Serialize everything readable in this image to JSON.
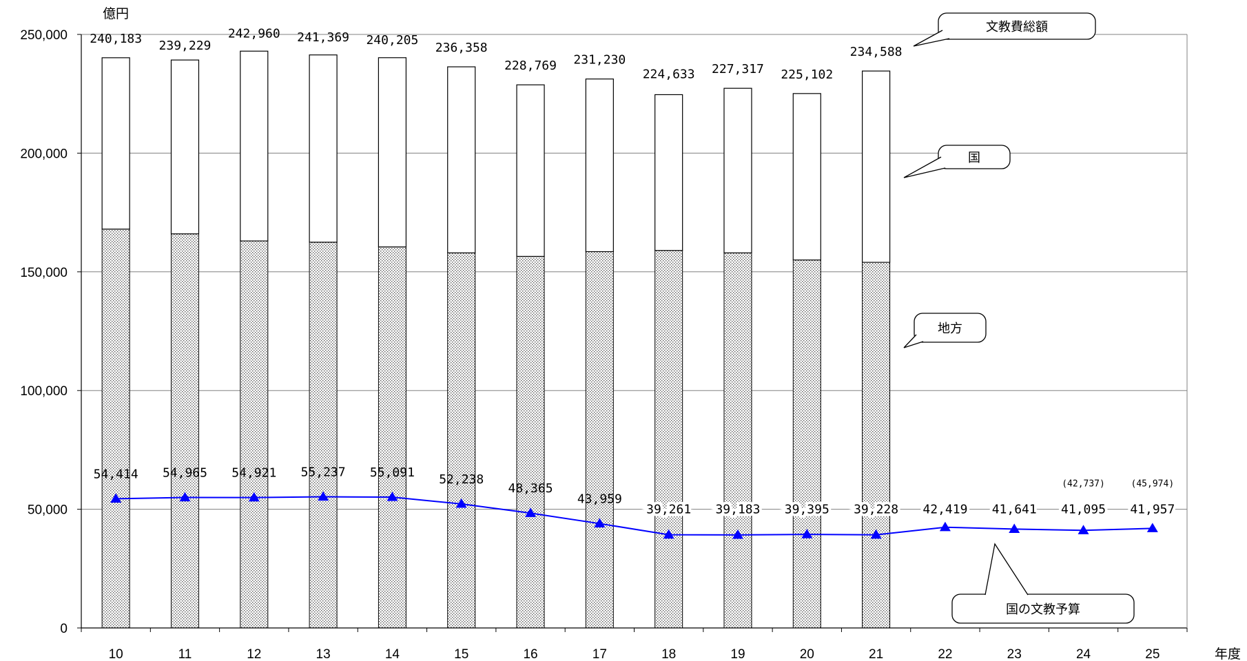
{
  "chart_data": {
    "type": "bar",
    "y_unit": "億円",
    "x_unit": "年度",
    "categories": [
      "10",
      "11",
      "12",
      "13",
      "14",
      "15",
      "16",
      "17",
      "18",
      "19",
      "20",
      "21",
      "22",
      "23",
      "24",
      "25"
    ],
    "ylim": [
      0,
      250000
    ],
    "y_ticks": [
      0,
      50000,
      100000,
      150000,
      200000,
      250000
    ],
    "y_tick_labels": [
      "0",
      "50,000",
      "100,000",
      "150,000",
      "200,000",
      "250,000"
    ],
    "grid": true,
    "series": [
      {
        "name": "地方",
        "kind": "stacked-bar-bottom",
        "pattern": "dotted",
        "values": [
          168000,
          166000,
          163000,
          162500,
          160500,
          158000,
          156500,
          158500,
          159000,
          158000,
          155000,
          154000,
          null,
          null,
          null,
          null
        ]
      },
      {
        "name": "国",
        "kind": "stacked-bar-top",
        "pattern": "white",
        "values": [
          72183,
          73229,
          79960,
          78869,
          79705,
          78358,
          72269,
          72730,
          65633,
          69317,
          70102,
          80588,
          null,
          null,
          null,
          null
        ]
      },
      {
        "name": "文教費総額",
        "kind": "bar-total",
        "values": [
          240183,
          239229,
          242960,
          241369,
          240205,
          236358,
          228769,
          231230,
          224633,
          227317,
          225102,
          234588,
          null,
          null,
          null,
          null
        ],
        "labels": [
          "240,183",
          "239,229",
          "242,960",
          "241,369",
          "240,205",
          "236,358",
          "228,769",
          "231,230",
          "224,633",
          "227,317",
          "225,102",
          "234,588",
          "",
          "",
          "",
          ""
        ]
      },
      {
        "name": "国の文教予算",
        "kind": "line",
        "color": "#0000ff",
        "marker": "triangle",
        "values": [
          54414,
          54965,
          54921,
          55237,
          55091,
          52238,
          48365,
          43959,
          39261,
          39183,
          39395,
          39228,
          42419,
          41641,
          41095,
          41957
        ],
        "labels": [
          "54,414",
          "54,965",
          "54,921",
          "55,237",
          "55,091",
          "52,238",
          "48,365",
          "43,959",
          "39,261",
          "39,183",
          "39,395",
          "39,228",
          "42,419",
          "41,641",
          "41,095",
          "41,957"
        ],
        "extra_labels": [
          "",
          "",
          "",
          "",
          "",
          "",
          "",
          "",
          "",
          "",
          "",
          "",
          "",
          "",
          "(42,737)",
          "(45,974)"
        ]
      }
    ],
    "callouts": [
      "文教費総額",
      "国",
      "地方",
      "国の文教予算"
    ]
  }
}
